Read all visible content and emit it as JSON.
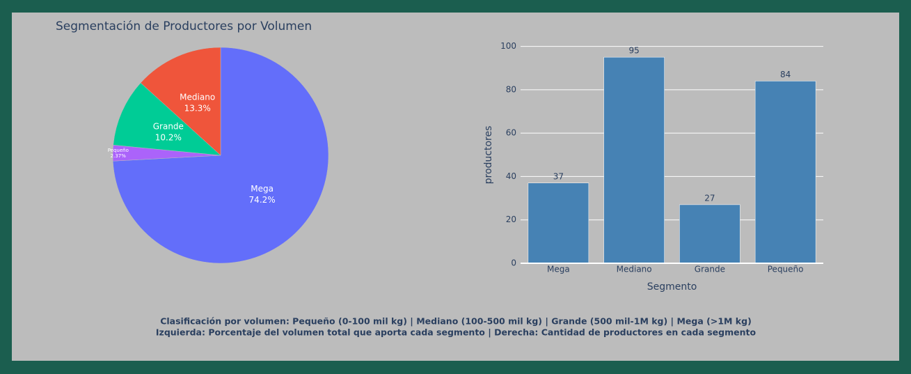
{
  "title": "Segmentación de Productores por Volumen",
  "notes": [
    "Clasificación por volumen: Pequeño (0-100 mil kg) | Mediano (100-500 mil kg) | Grande (500 mil-1M kg) | Mega (>1M kg)",
    "Izquierda: Porcentaje del volumen total que aporta cada segmento | Derecha: Cantidad de productores en cada segmento"
  ],
  "chart_data": [
    {
      "type": "pie",
      "categories": [
        "Mega",
        "Pequeño",
        "Grande",
        "Mediano"
      ],
      "values": [
        74.2,
        2.37,
        10.2,
        13.3
      ],
      "value_labels": [
        "74.2%",
        "2.37%",
        "10.2%",
        "13.3%"
      ],
      "colors": [
        "#636efa",
        "#ab63fa",
        "#00cc96",
        "#ef553b"
      ]
    },
    {
      "type": "bar",
      "categories": [
        "Mega",
        "Mediano",
        "Grande",
        "Pequeño"
      ],
      "values": [
        37,
        95,
        27,
        84
      ],
      "color": "#4682b4",
      "xlabel": "Segmento",
      "ylabel": "productores",
      "ylim": [
        0,
        105
      ],
      "yticks": [
        0,
        20,
        40,
        60,
        80,
        100
      ],
      "grid": true
    }
  ]
}
